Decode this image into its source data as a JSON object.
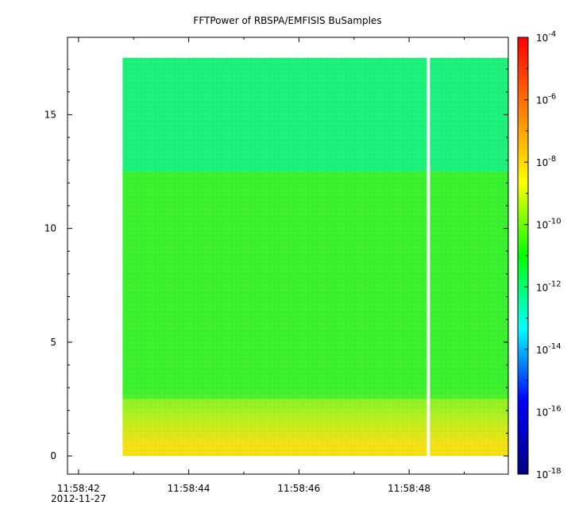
{
  "chart_data": {
    "type": "heatmap",
    "title": "FFTPower of RBSPA/EMFISIS  BuSamples",
    "xlabel": "",
    "ylabel": "",
    "x_ticks": [
      {
        "value": "11:58:42",
        "sub": "2012-11-27"
      },
      {
        "value": "11:58:44",
        "sub": ""
      },
      {
        "value": "11:58:46",
        "sub": ""
      },
      {
        "value": "11:58:48",
        "sub": ""
      }
    ],
    "y_ticks": [
      "0",
      "5",
      "10",
      "15"
    ],
    "ylim": [
      -0.8,
      18.4
    ],
    "xlim_seconds_after_11_58_42": [
      -0.2,
      7.8
    ],
    "data_extent": {
      "x_start": "11:58:42.8",
      "x_end": "11:58:49.8",
      "y_min": 0,
      "y_max": 17.5
    },
    "gap_time": "11:58:48.35",
    "colorbar": {
      "scale": "log",
      "range": [
        "1e-18",
        "1e-4"
      ],
      "tick_labels": [
        {
          "base": "10",
          "exp": "-4"
        },
        {
          "base": "10",
          "exp": "-6"
        },
        {
          "base": "10",
          "exp": "-8"
        },
        {
          "base": "10",
          "exp": "-10"
        },
        {
          "base": "10",
          "exp": "-12"
        },
        {
          "base": "10",
          "exp": "-14"
        },
        {
          "base": "10",
          "exp": "-16"
        },
        {
          "base": "10",
          "exp": "-18"
        }
      ],
      "colors": [
        "#000080",
        "#0000ff",
        "#00ffff",
        "#00ff00",
        "#ffff00",
        "#ff8000",
        "#ff0000"
      ]
    },
    "bands": [
      {
        "y_from": 12.5,
        "y_to": 17.5,
        "level_log10": -12.2,
        "color": "#1af07a"
      },
      {
        "y_from": 2.5,
        "y_to": 12.5,
        "level_log10": -10.8,
        "color": "#38f02c"
      },
      {
        "y_from": 0.5,
        "y_to": 2.5,
        "level_log10": -9.5,
        "color": "#a0f020"
      },
      {
        "y_from": 0.0,
        "y_to": 0.5,
        "level_log10": -8.4,
        "color": "#f2e010"
      }
    ]
  }
}
